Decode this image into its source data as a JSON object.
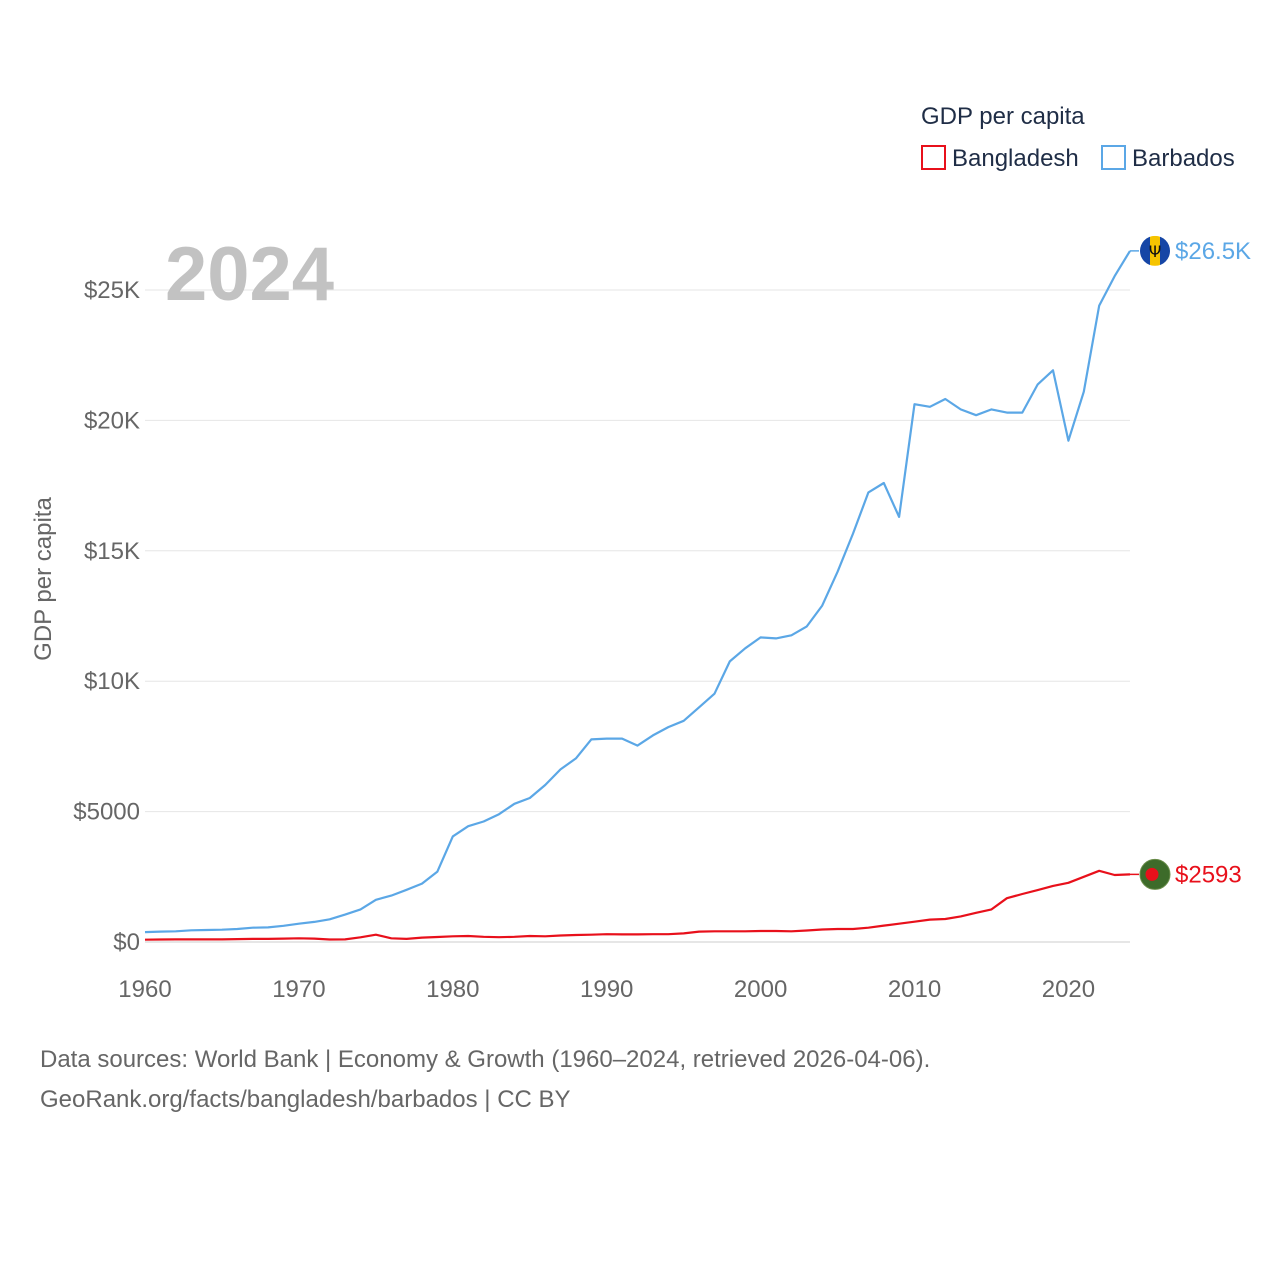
{
  "legend": {
    "title": "GDP per capita",
    "items": [
      {
        "name": "Bangladesh",
        "color": "#e8101b"
      },
      {
        "name": "Barbados",
        "color": "#5ba7e6"
      }
    ]
  },
  "year_watermark": "2024",
  "footer": {
    "line1": "Data sources: World Bank | Economy & Growth (1960–2024, retrieved 2026-04-06).",
    "line2": "GeoRank.org/facts/bangladesh/barbados | CC BY"
  },
  "chart_data": {
    "type": "line",
    "title": "GDP per capita",
    "xlabel": "",
    "ylabel": "GDP per capita",
    "xlim": [
      1960,
      2024
    ],
    "ylim": [
      0,
      27500
    ],
    "x_ticks": [
      1960,
      1970,
      1980,
      1990,
      2000,
      2010,
      2020
    ],
    "x_tick_labels": [
      "1960",
      "1970",
      "1980",
      "1990",
      "2000",
      "2010",
      "2020"
    ],
    "y_ticks": [
      0,
      5000,
      10000,
      15000,
      20000,
      25000
    ],
    "y_tick_labels": [
      "$0",
      "$5000",
      "$10K",
      "$15K",
      "$20K",
      "$25K"
    ],
    "grid": true,
    "legend_position": "top-right",
    "x": [
      1960,
      1961,
      1962,
      1963,
      1964,
      1965,
      1966,
      1967,
      1968,
      1969,
      1970,
      1971,
      1972,
      1973,
      1974,
      1975,
      1976,
      1977,
      1978,
      1979,
      1980,
      1981,
      1982,
      1983,
      1984,
      1985,
      1986,
      1987,
      1988,
      1989,
      1990,
      1991,
      1992,
      1993,
      1994,
      1995,
      1996,
      1997,
      1998,
      1999,
      2000,
      2001,
      2002,
      2003,
      2004,
      2005,
      2006,
      2007,
      2008,
      2009,
      2010,
      2011,
      2012,
      2013,
      2014,
      2015,
      2016,
      2017,
      2018,
      2019,
      2020,
      2021,
      2022,
      2023,
      2024
    ],
    "series": [
      {
        "name": "Barbados",
        "color": "#5ba7e6",
        "end_label": "$26.5K",
        "values": [
          380,
          400,
          410,
          450,
          460,
          470,
          500,
          550,
          560,
          620,
          700,
          770,
          870,
          1050,
          1250,
          1620,
          1780,
          2000,
          2240,
          2700,
          4050,
          4440,
          4620,
          4900,
          5300,
          5520,
          6020,
          6620,
          7040,
          7770,
          7800,
          7800,
          7530,
          7920,
          8240,
          8480,
          9000,
          9520,
          10760,
          11260,
          11680,
          11640,
          11760,
          12100,
          12900,
          14200,
          15660,
          17240,
          17600,
          16300,
          20620,
          20520,
          20820,
          20420,
          20200,
          20420,
          20300,
          20300,
          21380,
          21920,
          19220,
          21100,
          24400,
          25530,
          26500
        ]
      },
      {
        "name": "Bangladesh",
        "color": "#e8101b",
        "end_label": "$2593",
        "values": [
          90,
          95,
          100,
          100,
          100,
          100,
          110,
          120,
          120,
          130,
          140,
          130,
          95,
          100,
          180,
          280,
          140,
          120,
          170,
          190,
          220,
          230,
          200,
          185,
          200,
          230,
          220,
          250,
          270,
          280,
          300,
          290,
          290,
          300,
          300,
          330,
          400,
          410,
          410,
          410,
          420,
          420,
          410,
          440,
          480,
          500,
          500,
          550,
          630,
          700,
          780,
          860,
          880,
          980,
          1120,
          1250,
          1680,
          1840,
          1990,
          2150,
          2270,
          2500,
          2730,
          2570,
          2593
        ]
      }
    ]
  }
}
